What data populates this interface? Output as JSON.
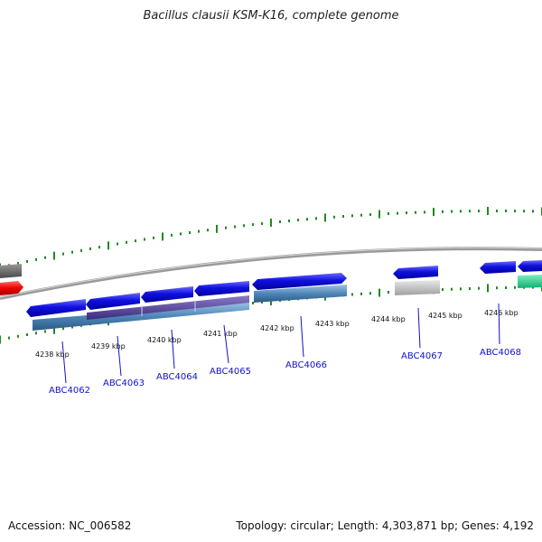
{
  "title": "Bacillus clausii KSM-K16, complete genome",
  "footer": {
    "accession": "Accession: NC_006582",
    "summary": "Topology: circular; Length: 4,303,871 bp; Genes: 4,192"
  },
  "colors": {
    "backbone": "#8a8a8a",
    "ticks": "#1f8a1f",
    "gene_forward": "#1010e0",
    "gene_reverse_band": "#4f86b8",
    "gene_purple": "#5a4a9a",
    "gene_red": "#ee0000",
    "gene_gray": "#c0c0c0",
    "gene_teal": "#22d890",
    "label": "#1111cc"
  },
  "kbp_labels": [
    "4238 kbp",
    "4239 kbp",
    "4240 kbp",
    "4241 kbp",
    "4242 kbp",
    "4243 kbp",
    "4244 kbp",
    "4245 kbp",
    "4246 kbp"
  ],
  "genes": [
    "ABC4062",
    "ABC4063",
    "ABC4064",
    "ABC4065",
    "ABC4066",
    "ABC4067",
    "ABC4068"
  ]
}
